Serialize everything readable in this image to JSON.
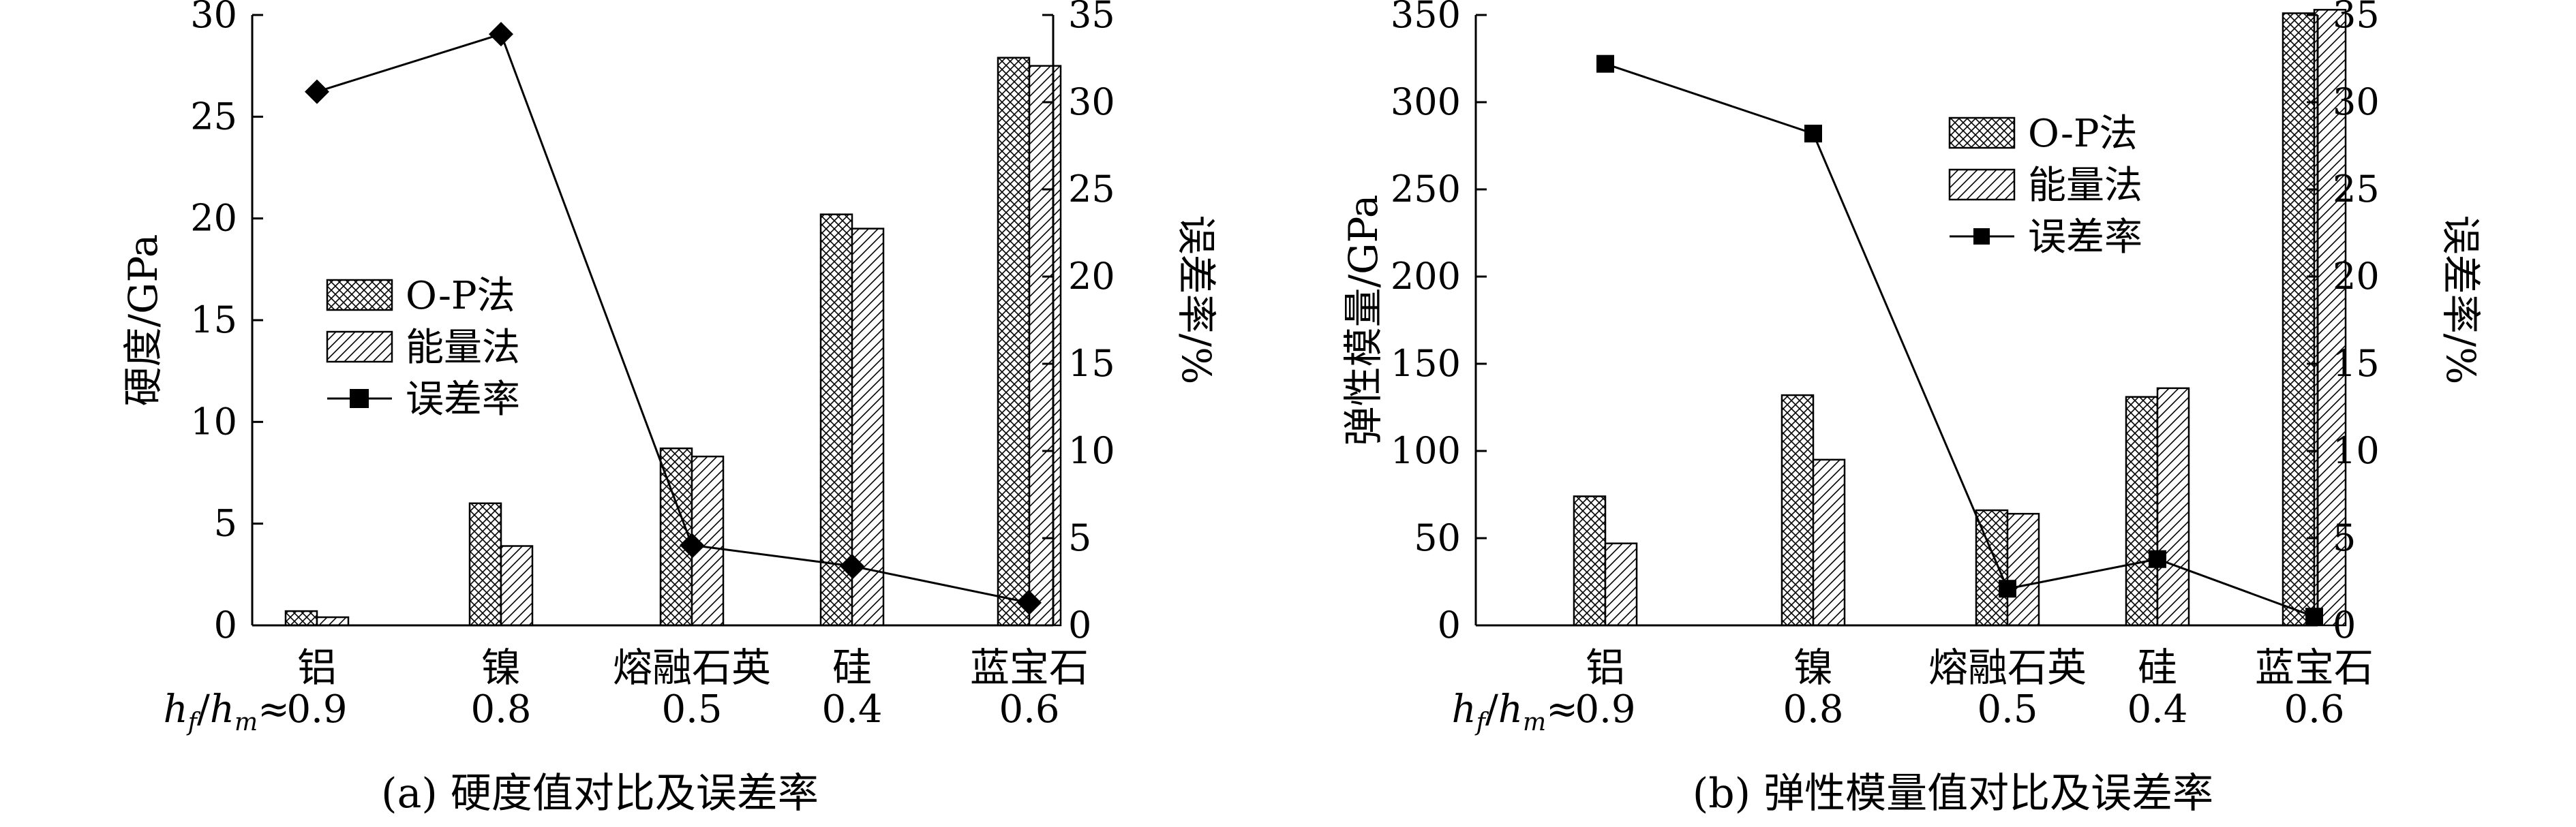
{
  "colors": {
    "axis": "#000000",
    "line": "#000000",
    "bar_fill": "#ffffff"
  },
  "chart_data": [
    {
      "type": "bar",
      "caption": "(a) 硬度值对比及误差率",
      "categories": [
        "铝",
        "镍",
        "熔融石英",
        "硅",
        "蓝宝石"
      ],
      "ratio_label": {
        "prefix_h": "h",
        "sub1": "f",
        "slash": "/",
        "sub2": "m",
        "approx": "≈"
      },
      "ratio_values": [
        "0.9",
        "0.8",
        "0.5",
        "0.4",
        "0.6"
      ],
      "ylabel": "硬度/GPa",
      "y2label": "误差率/%",
      "ylim": [
        0,
        30
      ],
      "y2lim": [
        0,
        35
      ],
      "yticks": [
        0,
        5,
        10,
        15,
        20,
        25,
        30
      ],
      "y2ticks": [
        0,
        5,
        10,
        15,
        20,
        25,
        30,
        35
      ],
      "series": [
        {
          "name": "O-P法",
          "kind": "bar",
          "pattern": "crosshatch",
          "values": [
            0.7,
            6.0,
            8.7,
            20.2,
            27.9
          ]
        },
        {
          "name": "能量法",
          "kind": "bar",
          "pattern": "diagonal",
          "values": [
            0.4,
            3.9,
            8.3,
            19.5,
            27.5
          ]
        },
        {
          "name": "误差率",
          "kind": "line",
          "axis": "right",
          "marker": "diamond",
          "values": [
            30.6,
            33.9,
            4.6,
            3.4,
            1.3
          ]
        }
      ],
      "legend": "center-left"
    },
    {
      "type": "bar",
      "caption": "(b) 弹性模量值对比及误差率",
      "categories": [
        "铝",
        "镍",
        "熔融石英",
        "硅",
        "蓝宝石"
      ],
      "ratio_label": {
        "prefix_h": "h",
        "sub1": "f",
        "slash": "/",
        "sub2": "m",
        "approx": "≈"
      },
      "ratio_values": [
        "0.9",
        "0.8",
        "0.5",
        "0.4",
        "0.6"
      ],
      "ylabel": "弹性模量/GPa",
      "y2label": "误差率/%",
      "ylim": [
        0,
        350
      ],
      "y2lim": [
        0,
        35
      ],
      "yticks": [
        0,
        50,
        100,
        150,
        200,
        250,
        300,
        350
      ],
      "y2ticks": [
        0,
        5,
        10,
        15,
        20,
        25,
        30,
        35
      ],
      "series": [
        {
          "name": "O-P法",
          "kind": "bar",
          "pattern": "crosshatch",
          "values": [
            74,
            132,
            66,
            131,
            351
          ]
        },
        {
          "name": "能量法",
          "kind": "bar",
          "pattern": "diagonal",
          "values": [
            47,
            95,
            64,
            136,
            353
          ]
        },
        {
          "name": "误差率",
          "kind": "line",
          "axis": "right",
          "marker": "square",
          "values": [
            32.2,
            28.2,
            2.1,
            3.8,
            0.5
          ]
        }
      ],
      "legend": "upper-center"
    }
  ]
}
